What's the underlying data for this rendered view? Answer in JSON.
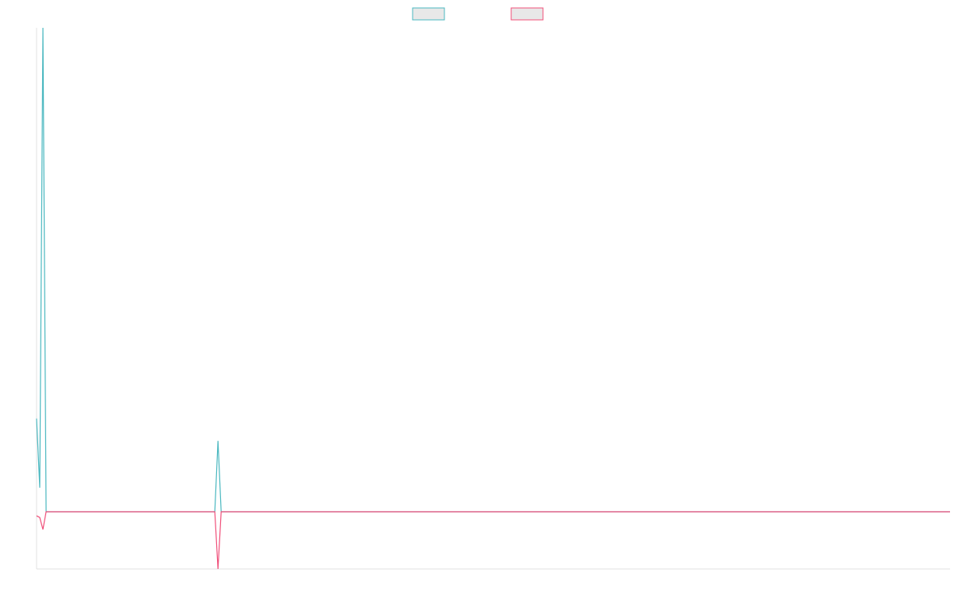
{
  "chart_data": {
    "type": "line",
    "x": [
      0,
      1,
      2,
      3,
      56,
      57,
      58,
      287
    ],
    "series": [
      {
        "color": "#4bb8c0",
        "values": [
          1.63,
          0.42,
          8.46,
          0,
          0,
          1.24,
          0,
          0
        ]
      },
      {
        "color": "#f0507a",
        "values": [
          -0.07,
          -0.1,
          -0.31,
          0,
          0,
          -1,
          0,
          0
        ]
      }
    ],
    "xlim": [
      0,
      287
    ],
    "ylim": [
      -1,
      8.46
    ],
    "legend": "top"
  }
}
